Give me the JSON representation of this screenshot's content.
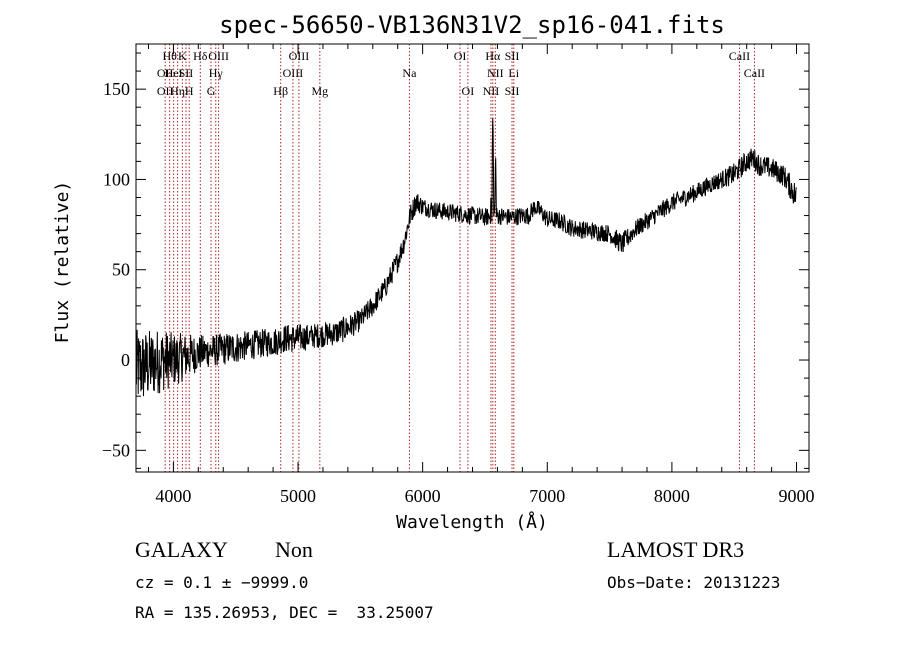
{
  "chart_data": {
    "type": "line",
    "title": "spec-56650-VB136N31V2_sp16-041.fits",
    "xlabel": "Wavelength (Å)",
    "ylabel": "Flux (relative)",
    "xlim": [
      3700,
      9100
    ],
    "ylim": [
      -62,
      175
    ],
    "xticks": [
      4000,
      5000,
      6000,
      7000,
      8000,
      9000
    ],
    "xtick_labels": [
      "4000",
      "5000",
      "6000",
      "7000",
      "8000",
      "9000"
    ],
    "yticks": [
      -50,
      0,
      50,
      100,
      150
    ],
    "ytick_labels": [
      "−50",
      "0",
      "50",
      "100",
      "150"
    ],
    "spectrum_anchors": {
      "x": [
        3700,
        3800,
        3900,
        4000,
        4100,
        4200,
        4300,
        4400,
        4500,
        4600,
        4700,
        4800,
        4900,
        5000,
        5100,
        5200,
        5300,
        5400,
        5500,
        5600,
        5700,
        5800,
        5850,
        5900,
        5950,
        6000,
        6100,
        6200,
        6300,
        6400,
        6500,
        6600,
        6700,
        6800,
        6850,
        6900,
        6950,
        7000,
        7100,
        7200,
        7300,
        7400,
        7500,
        7600,
        7700,
        7800,
        7900,
        8000,
        8100,
        8200,
        8300,
        8400,
        8500,
        8600,
        8650,
        8700,
        8800,
        8900,
        9000
      ],
      "y": [
        -5,
        -3,
        0,
        0,
        2,
        4,
        5,
        6,
        7,
        8,
        9,
        10,
        12,
        12,
        13,
        14,
        15,
        18,
        22,
        30,
        40,
        55,
        65,
        80,
        88,
        85,
        83,
        82,
        81,
        80,
        79,
        80,
        79,
        80,
        80,
        85,
        82,
        78,
        77,
        73,
        72,
        71,
        70,
        64,
        72,
        77,
        82,
        87,
        90,
        93,
        97,
        100,
        103,
        110,
        112,
        108,
        106,
        102,
        90
      ],
      "noise": [
        22,
        20,
        18,
        15,
        13,
        10,
        9,
        9,
        9,
        8,
        8,
        8,
        8,
        8,
        7,
        7,
        7,
        7,
        6,
        6,
        6,
        6,
        6,
        6,
        6,
        5,
        5,
        5,
        5,
        5,
        5,
        5,
        5,
        5,
        5,
        5,
        5,
        5,
        5,
        5,
        5,
        5,
        5,
        6,
        5,
        5,
        5,
        5,
        5,
        5,
        5,
        5,
        6,
        6,
        6,
        6,
        6,
        6,
        8
      ],
      "emission_peaks": [
        {
          "x": 6563,
          "y": 140
        },
        {
          "x": 6585,
          "y": 118
        },
        {
          "x": 6548,
          "y": 96
        }
      ]
    },
    "line_markers": [
      {
        "x": 3934,
        "row": 1,
        "label": "OII"
      },
      {
        "x": 3934,
        "row": 2,
        "label": "OII"
      },
      {
        "x": 3970,
        "row": 0,
        "label": "Hθ"
      },
      {
        "x": 4002,
        "row": 1,
        "label": "HeI"
      },
      {
        "x": 4034,
        "row": 2,
        "label": "Hη"
      },
      {
        "x": 4072,
        "row": 0,
        "label": "K"
      },
      {
        "x": 4101,
        "row": 1,
        "label": "SII"
      },
      {
        "x": 4127,
        "row": 2,
        "label": "H"
      },
      {
        "x": 4216,
        "row": 0,
        "label": "Hδ"
      },
      {
        "x": 4302,
        "row": 2,
        "label": "G"
      },
      {
        "x": 4340,
        "row": 1,
        "label": "Hγ"
      },
      {
        "x": 4363,
        "row": 0,
        "label": "OIII"
      },
      {
        "x": 4861,
        "row": 2,
        "label": "Hβ"
      },
      {
        "x": 4959,
        "row": 1,
        "label": "OIII"
      },
      {
        "x": 5007,
        "row": 0,
        "label": "OIII"
      },
      {
        "x": 5175,
        "row": 2,
        "label": "Mg"
      },
      {
        "x": 5894,
        "row": 1,
        "label": "Na"
      },
      {
        "x": 6300,
        "row": 0,
        "label": "OI"
      },
      {
        "x": 6363,
        "row": 2,
        "label": "OI"
      },
      {
        "x": 6548,
        "row": 2,
        "label": "NII"
      },
      {
        "x": 6563,
        "row": 0,
        "label": "Hα"
      },
      {
        "x": 6583,
        "row": 1,
        "label": "NII"
      },
      {
        "x": 6717,
        "row": 0,
        "label": "SII"
      },
      {
        "x": 6717,
        "row": 2,
        "label": "SII"
      },
      {
        "x": 6731,
        "row": 1,
        "label": "Li"
      },
      {
        "x": 8542,
        "row": 0,
        "label": "CaII"
      },
      {
        "x": 8662,
        "row": 1,
        "label": "CaII"
      }
    ]
  },
  "info": {
    "object_class": "GALAXY",
    "subclass": "Non",
    "survey": "LAMOST DR3",
    "cz_line": "cz = 0.1 ± −9999.0",
    "obs_date_line": "Obs−Date: 20131223",
    "radec_line": "RA = 135.26953, DEC =  33.25007"
  },
  "colors": {
    "spectrum": "#000000",
    "line_marker": "#b22222",
    "axes": "#000000",
    "background": "#ffffff"
  }
}
